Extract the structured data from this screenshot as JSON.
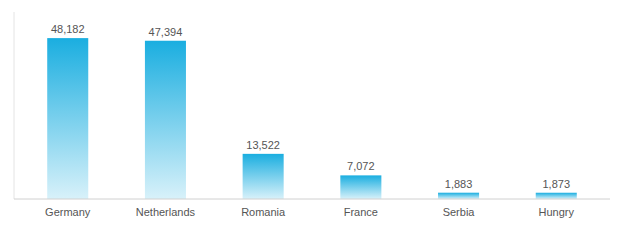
{
  "chart_data": {
    "type": "bar",
    "categories": [
      "Germany",
      "Netherlands",
      "Romania",
      "France",
      "Serbia",
      "Hungry"
    ],
    "values": [
      48182,
      47394,
      13522,
      7072,
      1883,
      1873
    ],
    "value_labels": [
      "48,182",
      "47,394",
      "13,522",
      "7,072",
      "1,883",
      "1,873"
    ],
    "data_labels": true,
    "color": "#1AAEE0",
    "ylim": [
      0,
      56000
    ],
    "tick_labels": "x",
    "grid": false
  }
}
